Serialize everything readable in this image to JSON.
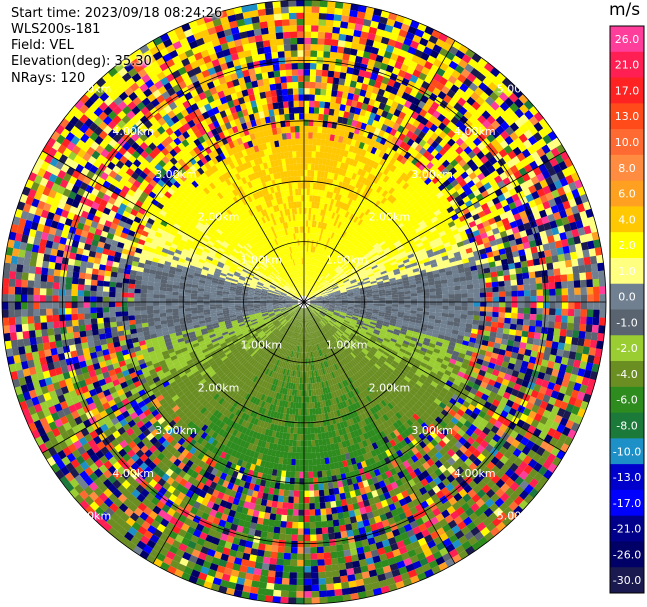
{
  "header": {
    "start_time": "Start time: 2023/09/18 08:24:26",
    "instrument": "WLS200s-181",
    "field": "Field: VEL",
    "elevation": "Elevation(deg): 35.30",
    "nrays": "NRays: 120"
  },
  "chart_data": {
    "type": "heatmap",
    "projection": "polar PPI",
    "field": "VEL",
    "units": "m/s",
    "n_rays": 120,
    "elevation_deg": 35.3,
    "range_rings_km": [
      1.0,
      2.0,
      3.0,
      4.0,
      5.0
    ],
    "range_ring_labels": [
      "1.00km",
      "2.00km",
      "3.00km",
      "4.00km",
      "5.00km"
    ],
    "azimuth_lines_deg": [
      0,
      30,
      60,
      90,
      120,
      150,
      180,
      210,
      240,
      270,
      300,
      330
    ],
    "max_range_km": 5.0,
    "pattern": {
      "description_values": "radial velocity field: positive (2-4 m/s) toward north, negative (-2 to -6 m/s) toward south, near zero east-west band, noise beyond ~3 km",
      "north_sector_ms": [
        2.0,
        4.0
      ],
      "south_sector_ms": [
        -6.0,
        -2.0
      ],
      "clean_range_km": 3.0
    },
    "colorbar": {
      "unit": "m/s",
      "ticks": [
        "26.0",
        "21.0",
        "17.0",
        "13.0",
        "10.0",
        "8.0",
        "6.0",
        "4.0",
        "2.0",
        "1.0",
        "0.0",
        "-1.0",
        "-2.0",
        "-4.0",
        "-6.0",
        "-8.0",
        "-10.0",
        "-13.0",
        "-17.0",
        "-21.0",
        "-26.0",
        "-30.0"
      ],
      "colors": [
        "#ff3d9a",
        "#ff1f52",
        "#ff2222",
        "#ff4a1a",
        "#ff6a33",
        "#ff8c40",
        "#ffa020",
        "#ffc800",
        "#ffff00",
        "#ffff80",
        "#708090",
        "#5a6470",
        "#9acd32",
        "#6b8e23",
        "#2e8b1e",
        "#1b7a3a",
        "#1e90c8",
        "#0000cd",
        "#0000ff",
        "#00008b",
        "#000066",
        "#1a1a50"
      ]
    }
  }
}
